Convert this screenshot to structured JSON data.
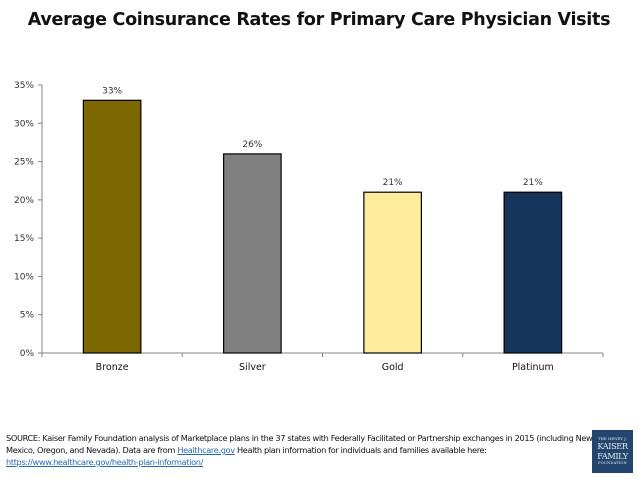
{
  "chart_data": {
    "type": "bar",
    "title": "Average Coinsurance Rates for Primary Care Physician Visits",
    "xlabel": "",
    "ylabel": "",
    "categories": [
      "Bronze",
      "Silver",
      "Gold",
      "Platinum"
    ],
    "values": [
      33,
      26,
      21,
      21
    ],
    "data_labels": [
      "33%",
      "26%",
      "21%",
      "21%"
    ],
    "colors": [
      "#7d6700",
      "#808080",
      "#ffeb9c",
      "#16355d"
    ],
    "ylim": [
      0,
      35
    ],
    "yticks": [
      0,
      5,
      10,
      15,
      20,
      25,
      30,
      35
    ],
    "ytick_labels": [
      "0%",
      "5%",
      "10%",
      "15%",
      "20%",
      "25%",
      "30%",
      "35%"
    ],
    "grid": false,
    "legend": "none"
  },
  "footer": {
    "source_prefix": "SOURCE: Kaiser Family Foundation analysis of Marketplace plans in the 37 states with Federally Facilitated or Partnership exchanges in 2015 (including New Mexico, Oregon, and Nevada). Data are from ",
    "link1_text": "Healthcare.gov",
    "source_middle": " Health plan information for individuals and families available here: ",
    "link2_text": "https://www.healthcare.gov/health-plan-information/"
  },
  "logo": {
    "line1": "THE HENRY J.",
    "line2": "KAISER",
    "line3": "FAMILY",
    "line4": "FOUNDATION"
  }
}
